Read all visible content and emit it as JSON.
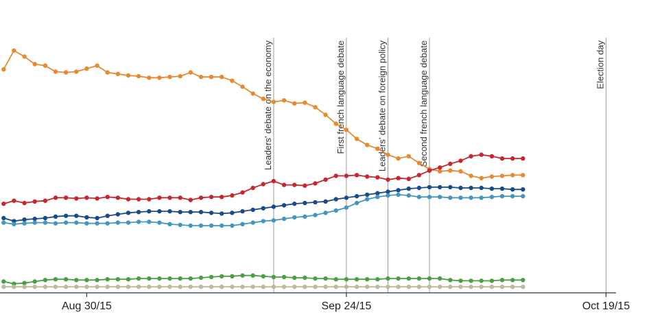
{
  "chart_data": {
    "type": "line",
    "x_axis": {
      "ticks": [
        {
          "date": "2015-08-30",
          "label": "Aug 30/15"
        },
        {
          "date": "2015-09-24",
          "label": "Sep 24/15"
        },
        {
          "date": "2015-10-19",
          "label": "Oct 19/15"
        }
      ]
    },
    "events": [
      {
        "date": "2015-09-17",
        "label": "Leaders' debate on the economy"
      },
      {
        "date": "2015-09-24",
        "label": "First french language debate"
      },
      {
        "date": "2015-09-28",
        "label": "Leaders' debate on foreign policy"
      },
      {
        "date": "2015-10-02",
        "label": "Second french language debate"
      },
      {
        "date": "2015-10-19",
        "label": "Election day"
      }
    ],
    "dates": [
      "2015-08-22",
      "2015-08-23",
      "2015-08-24",
      "2015-08-25",
      "2015-08-26",
      "2015-08-27",
      "2015-08-28",
      "2015-08-29",
      "2015-08-30",
      "2015-08-31",
      "2015-09-01",
      "2015-09-02",
      "2015-09-03",
      "2015-09-04",
      "2015-09-05",
      "2015-09-06",
      "2015-09-07",
      "2015-09-08",
      "2015-09-09",
      "2015-09-10",
      "2015-09-11",
      "2015-09-12",
      "2015-09-13",
      "2015-09-14",
      "2015-09-15",
      "2015-09-16",
      "2015-09-17",
      "2015-09-18",
      "2015-09-19",
      "2015-09-20",
      "2015-09-21",
      "2015-09-22",
      "2015-09-23",
      "2015-09-24",
      "2015-09-25",
      "2015-09-26",
      "2015-09-27",
      "2015-09-28",
      "2015-09-29",
      "2015-09-30",
      "2015-10-01",
      "2015-10-02",
      "2015-10-03",
      "2015-10-04",
      "2015-10-05",
      "2015-10-06",
      "2015-10-07",
      "2015-10-08",
      "2015-10-09",
      "2015-10-10",
      "2015-10-11"
    ],
    "series": [
      {
        "color": "#e8892f",
        "values": [
          80.3,
          82.8,
          82.0,
          81.0,
          80.8,
          80.0,
          79.9,
          80.0,
          80.4,
          80.8,
          79.9,
          79.7,
          79.5,
          79.4,
          79.2,
          79.2,
          79.3,
          79.4,
          79.9,
          79.3,
          79.3,
          79.3,
          78.8,
          78.0,
          77.1,
          76.4,
          76.0,
          76.2,
          75.8,
          75.9,
          75.3,
          74.3,
          73.1,
          72.3,
          71.1,
          70.3,
          69.8,
          69.0,
          68.5,
          68.8,
          67.9,
          67.1,
          66.8,
          66.9,
          66.8,
          66.2,
          65.9,
          66.1,
          66.2,
          66.3,
          66.3
        ]
      },
      {
        "color": "#c9252e",
        "values": [
          62.5,
          62.9,
          62.6,
          62.8,
          62.9,
          63.3,
          63.3,
          63.2,
          63.3,
          63.2,
          63.4,
          63.3,
          63.1,
          63.1,
          63.1,
          63.3,
          63.3,
          63.3,
          63.0,
          63.3,
          63.4,
          63.4,
          63.6,
          64.0,
          64.6,
          65.1,
          65.5,
          65.0,
          65.0,
          64.9,
          65.2,
          65.7,
          66.2,
          66.2,
          66.3,
          66.1,
          66.0,
          65.7,
          65.9,
          65.8,
          66.3,
          66.9,
          67.3,
          67.8,
          68.2,
          68.8,
          69.0,
          68.8,
          68.5,
          68.5,
          68.5
        ]
      },
      {
        "color": "#1a4a8b",
        "values": [
          60.6,
          60.2,
          60.4,
          60.5,
          60.6,
          60.8,
          60.9,
          60.9,
          60.7,
          60.6,
          60.9,
          61.1,
          61.3,
          61.4,
          61.5,
          61.5,
          61.5,
          61.4,
          61.4,
          61.4,
          61.3,
          61.2,
          61.3,
          61.5,
          61.7,
          61.9,
          62.1,
          62.3,
          62.5,
          62.6,
          62.7,
          62.8,
          63.1,
          63.3,
          63.5,
          63.7,
          63.9,
          64.1,
          64.3,
          64.5,
          64.6,
          64.7,
          64.7,
          64.7,
          64.6,
          64.6,
          64.6,
          64.5,
          64.5,
          64.4,
          64.4
        ]
      },
      {
        "color": "#4596bd",
        "values": [
          60.0,
          59.8,
          59.9,
          60.0,
          60.0,
          59.9,
          60.0,
          60.0,
          59.9,
          59.9,
          59.9,
          60.0,
          60.0,
          60.1,
          60.1,
          60.0,
          59.8,
          59.7,
          59.6,
          59.6,
          59.6,
          59.6,
          59.6,
          59.8,
          60.0,
          60.2,
          60.3,
          60.5,
          60.7,
          60.8,
          61.0,
          61.3,
          61.6,
          62.0,
          62.6,
          63.1,
          63.4,
          63.6,
          63.7,
          63.6,
          63.4,
          63.4,
          63.4,
          63.3,
          63.3,
          63.3,
          63.3,
          63.4,
          63.5,
          63.5,
          63.5
        ]
      },
      {
        "color": "#4a9e45",
        "values": [
          52.2,
          51.9,
          52.0,
          52.2,
          52.4,
          52.5,
          52.5,
          52.4,
          52.4,
          52.4,
          52.5,
          52.5,
          52.5,
          52.6,
          52.6,
          52.6,
          52.6,
          52.6,
          52.6,
          52.7,
          52.8,
          52.9,
          52.9,
          53.0,
          53.0,
          52.9,
          52.8,
          52.8,
          52.7,
          52.7,
          52.6,
          52.6,
          52.5,
          52.5,
          52.5,
          52.5,
          52.5,
          52.6,
          52.6,
          52.6,
          52.6,
          52.6,
          52.6,
          52.4,
          52.3,
          52.3,
          52.3,
          52.3,
          52.4,
          52.4,
          52.4
        ]
      },
      {
        "color": "#bfb99a",
        "values": [
          51.5,
          51.5,
          51.5,
          51.5,
          51.5,
          51.5,
          51.5,
          51.5,
          51.5,
          51.5,
          51.5,
          51.5,
          51.5,
          51.5,
          51.5,
          51.5,
          51.5,
          51.5,
          51.5,
          51.5,
          51.5,
          51.5,
          51.5,
          51.5,
          51.5,
          51.5,
          51.5,
          51.5,
          51.5,
          51.5,
          51.5,
          51.5,
          51.5,
          51.5,
          51.5,
          51.5,
          51.5,
          51.5,
          51.5,
          51.5,
          51.5,
          51.5,
          51.5,
          51.5,
          51.5,
          51.5,
          51.5,
          51.5,
          51.5,
          51.5,
          51.5
        ]
      }
    ],
    "x_range": [
      "2015-08-22",
      "2015-10-20"
    ],
    "y_range": [
      50.7,
      84.5
    ],
    "grid": false,
    "legend": "none"
  }
}
